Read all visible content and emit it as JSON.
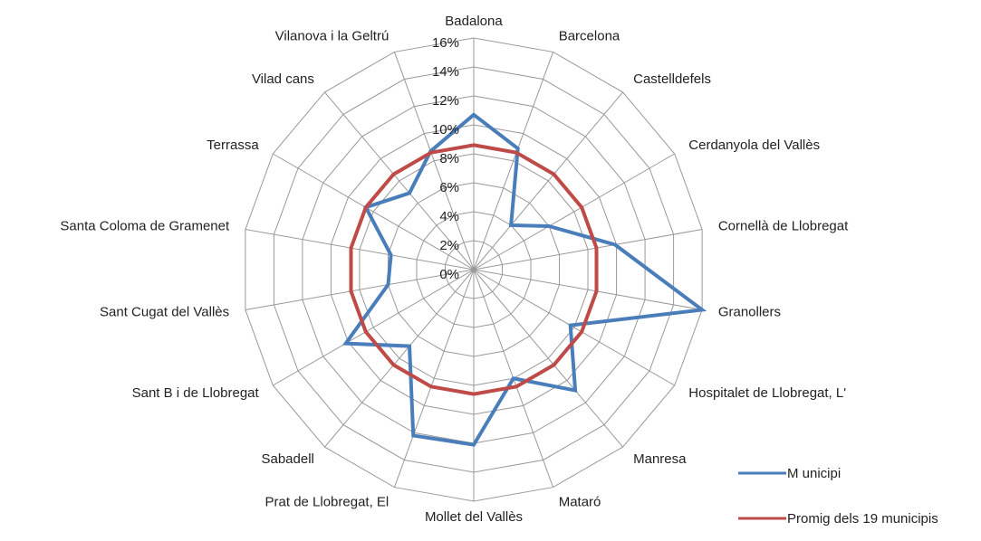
{
  "chart_data": {
    "type": "radar",
    "categories": [
      "Badalona",
      "Barcelona",
      "Castelldefels",
      "Cerdanyola del Vallès",
      "Cornellà de Llobregat",
      "Granollers",
      "Hospitalet de Llobregat, L'",
      "Manresa",
      "Mataró",
      "Mollet del Vallès",
      "Prat de Llobregat, El",
      "Sabadell",
      "Sant B i de Llobregat",
      "Sant Cugat del Vallès",
      "Santa Coloma de Gramenet",
      "Terrassa",
      "Vilad cans",
      "Vilanova i la Geltrú"
    ],
    "series": [
      {
        "name": "M unicipi",
        "color": "#4a7ebb",
        "values": [
          10.7,
          8.9,
          4.0,
          6.0,
          9.9,
          16.0,
          7.7,
          10.9,
          8.0,
          12.1,
          12.2,
          6.9,
          10.2,
          6.0,
          5.8,
          8.6,
          6.9,
          8.7
        ]
      },
      {
        "name": "Promig dels 19 municipis",
        "color": "#be4b48",
        "values": [
          8.6,
          8.6,
          8.6,
          8.6,
          8.6,
          8.6,
          8.6,
          8.6,
          8.6,
          8.6,
          8.6,
          8.6,
          8.6,
          8.6,
          8.6,
          8.6,
          8.6,
          8.6
        ]
      }
    ],
    "ylim": [
      0,
      16
    ],
    "yticks": [
      {
        "value": 0,
        "label": "0%"
      },
      {
        "value": 2,
        "label": "2%"
      },
      {
        "value": 4,
        "label": "4%"
      },
      {
        "value": 6,
        "label": "6%"
      },
      {
        "value": 8,
        "label": "8%"
      },
      {
        "value": 10,
        "label": "10%"
      },
      {
        "value": 12,
        "label": "12%"
      },
      {
        "value": 14,
        "label": "14%"
      },
      {
        "value": 16,
        "label": "16%"
      }
    ],
    "grid": true,
    "legend": "lower right"
  }
}
